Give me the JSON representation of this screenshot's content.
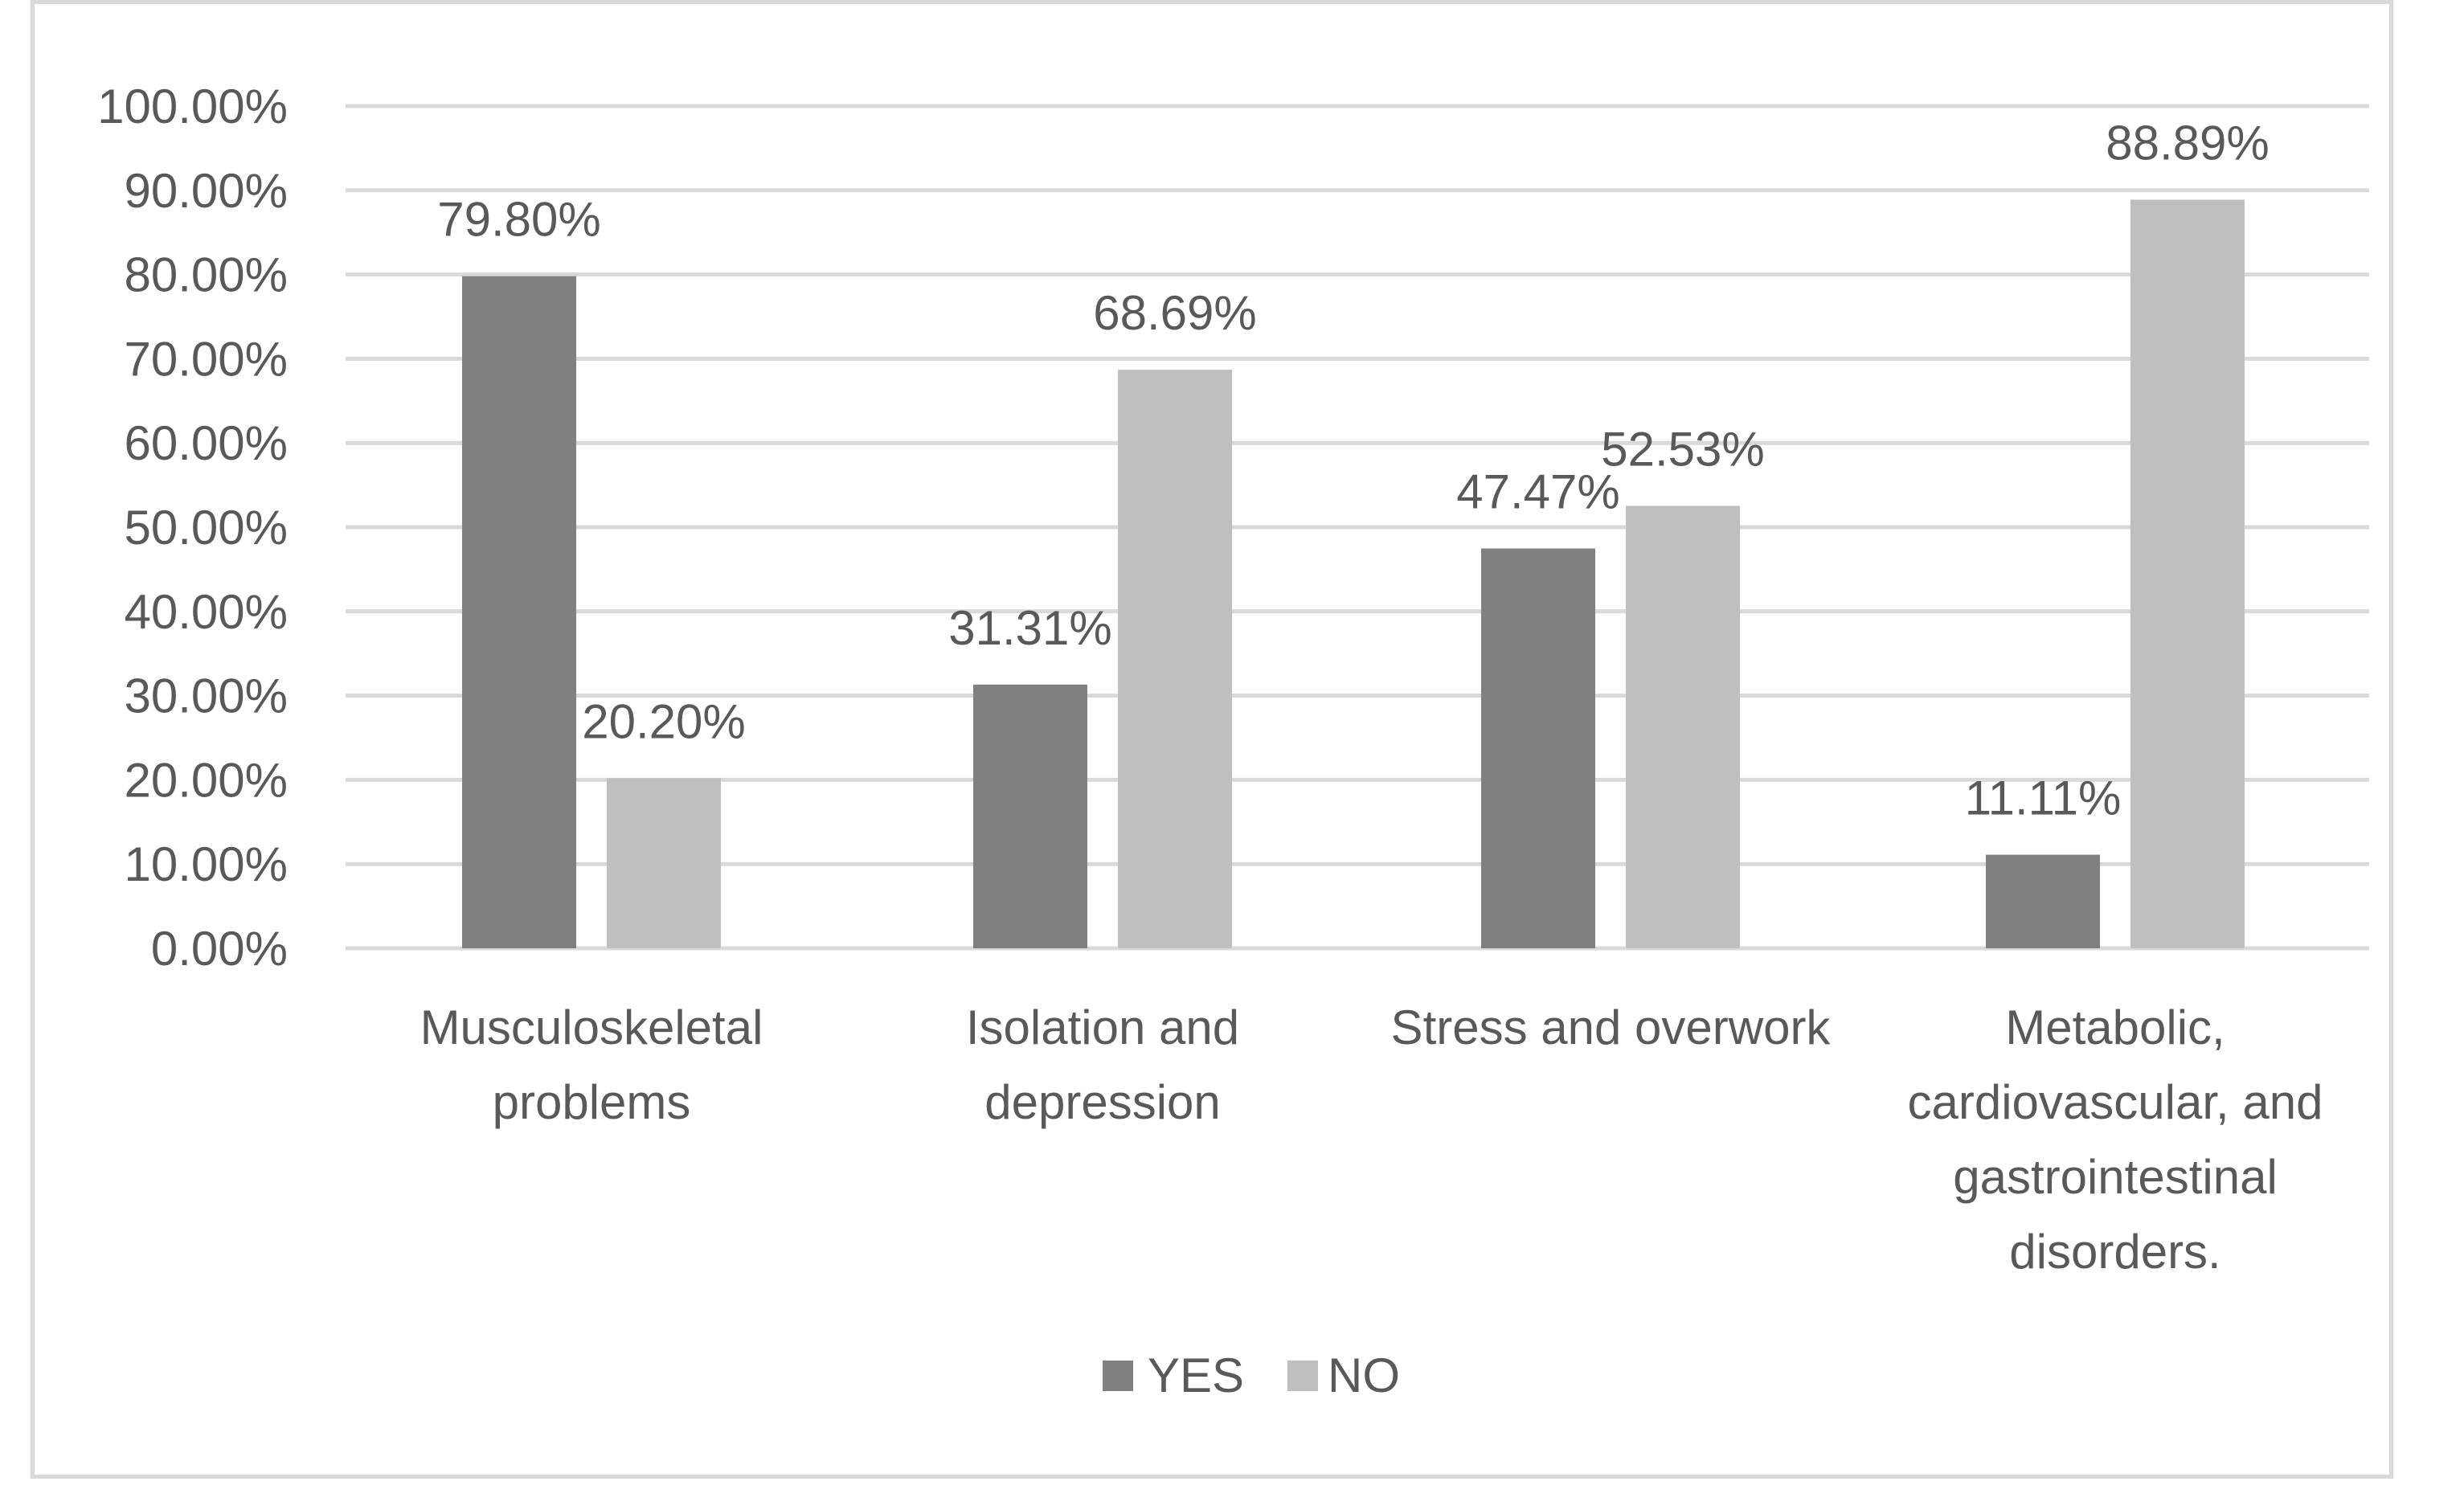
{
  "chart_data": {
    "type": "bar",
    "title": "",
    "xlabel": "",
    "ylabel": "",
    "categories": [
      [
        "Musculoskeletal",
        "problems"
      ],
      [
        "Isolation and",
        "depression"
      ],
      [
        "Stress and overwork"
      ],
      [
        "Metabolic,",
        "cardiovascular, and",
        "gastrointestinal",
        "disorders."
      ]
    ],
    "series": [
      {
        "name": "YES",
        "values": [
          79.8,
          31.31,
          47.47,
          11.11
        ],
        "labels": [
          "79.80%",
          "31.31%",
          "47.47%",
          "11.11%"
        ],
        "color": "#808080"
      },
      {
        "name": "NO",
        "values": [
          20.2,
          68.69,
          52.53,
          88.89
        ],
        "labels": [
          "20.20%",
          "68.69%",
          "52.53%",
          "88.89%"
        ],
        "color": "#bfbfbf"
      }
    ],
    "ylim": [
      0,
      100
    ],
    "yticks": [
      0,
      10,
      20,
      30,
      40,
      50,
      60,
      70,
      80,
      90,
      100
    ],
    "ytick_labels": [
      "0.00%",
      "10.00%",
      "20.00%",
      "30.00%",
      "40.00%",
      "50.00%",
      "60.00%",
      "70.00%",
      "80.00%",
      "90.00%",
      "100.00%"
    ],
    "grid": true,
    "legend_position": "bottom-center",
    "colors": {
      "grid": "#d9d9d9",
      "text": "#595959",
      "frame": "#d9d9d9"
    }
  }
}
